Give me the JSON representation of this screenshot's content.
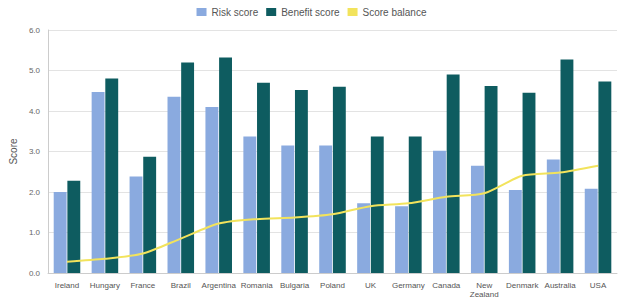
{
  "chart_data": {
    "type": "bar",
    "categories": [
      "Ireland",
      "Hungary",
      "France",
      "Brazil",
      "Argentina",
      "Romania",
      "Bulgaria",
      "Poland",
      "UK",
      "Germany",
      "Canada",
      "New Zealand",
      "Denmark",
      "Australia",
      "USA"
    ],
    "series": [
      {
        "name": "Risk score",
        "type": "bar",
        "color": "#8aaadf",
        "values": [
          2.0,
          4.47,
          2.38,
          4.35,
          4.1,
          3.37,
          3.15,
          3.15,
          1.72,
          1.65,
          3.02,
          2.65,
          2.05,
          2.8,
          2.08
        ]
      },
      {
        "name": "Benefit score",
        "type": "bar",
        "color": "#0e5c60",
        "values": [
          2.28,
          4.8,
          2.87,
          5.2,
          5.32,
          4.7,
          4.52,
          4.6,
          3.37,
          3.37,
          4.9,
          4.62,
          4.45,
          5.27,
          4.73
        ]
      },
      {
        "name": "Score balance",
        "type": "line",
        "color": "#f2e35c",
        "marker": "none",
        "line_style": "solid",
        "values": [
          0.28,
          0.35,
          0.48,
          0.85,
          1.22,
          1.33,
          1.37,
          1.45,
          1.65,
          1.72,
          1.88,
          1.97,
          2.4,
          2.48,
          2.65
        ]
      }
    ],
    "y_label": "Score",
    "ylim": [
      0,
      6
    ],
    "yticks": [
      {
        "value": 0,
        "label": "0.0"
      },
      {
        "value": 1,
        "label": "1.0"
      },
      {
        "value": 2,
        "label": "2.0"
      },
      {
        "value": 3,
        "label": "3.0"
      },
      {
        "value": 4,
        "label": "4.0"
      },
      {
        "value": 5,
        "label": "5.0"
      },
      {
        "value": 6,
        "label": "6.0"
      }
    ],
    "grid": true,
    "legend": "top"
  }
}
